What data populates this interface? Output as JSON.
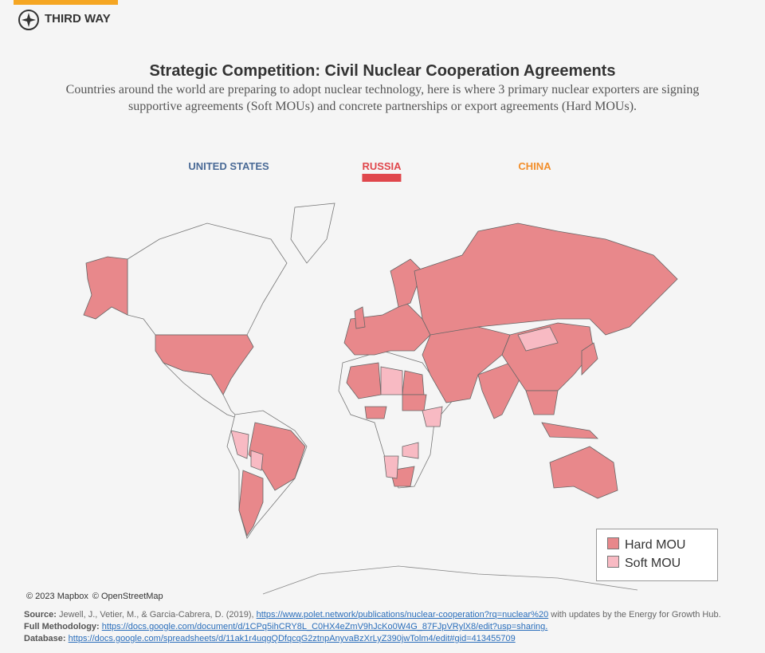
{
  "header": {
    "logo": "THIRD WAY",
    "title": "Strategic Competition: Civil Nuclear Cooperation Agreements",
    "subtitle": "Countries around the world are preparing to adopt nuclear technology, here is where 3 primary nuclear exporters are signing supportive agreements (Soft MOUs) and concrete partnerships or export agreements (Hard MOUs)."
  },
  "tabs": [
    {
      "label": "UNITED STATES",
      "color": "#4a6a96"
    },
    {
      "label": "RUSSIA",
      "color": "#e0474c"
    },
    {
      "label": "CHINA",
      "color": "#f28e2b"
    }
  ],
  "active_tab": 1,
  "legend": [
    {
      "label": "Hard MOU",
      "color": "#e8888b"
    },
    {
      "label": "Soft MOU",
      "color": "#f8bac3"
    }
  ],
  "map": {
    "attribution": [
      "© 2023 Mapbox",
      "© OpenStreetMap"
    ]
  },
  "footer": [
    {
      "label": "Source:",
      "text": "Jewell, J., Vetier, M., & Garcia-Cabrera, D. (2019),",
      "link": "https://www.polet.network/publications/nuclear-cooperation?rq=nuclear%20",
      "after": "with updates by the Energy for Growth Hub."
    },
    {
      "label": "Full Methodology:",
      "link": "https://docs.google.com/document/d/1CPq5ihCRY8L_C0HX4eZmV9hJcKo0W4G_87FJpVRylX8/edit?usp=sharing."
    },
    {
      "label": "Database:",
      "link": "https://docs.google.com/spreadsheets/d/11ak1r4uqgQDfqcqG2ztnpAnyvaBzXrLyZ390jwTolm4/edit#gid=413455709"
    }
  ]
}
